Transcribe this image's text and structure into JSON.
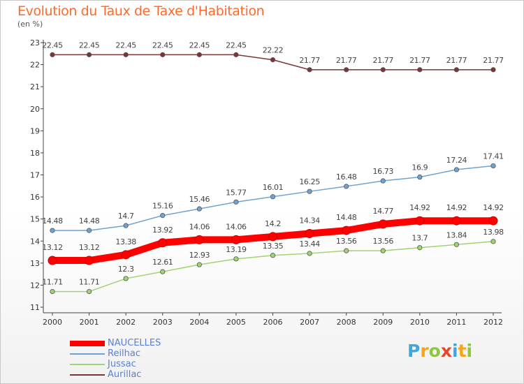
{
  "title": "Evolution du Taux de Taxe d'Habitation",
  "subtitle": "(en %)",
  "brand": {
    "letters": [
      "P",
      "r",
      "o",
      "x",
      "i",
      "t",
      "i"
    ],
    "colors": [
      "#39a9e0",
      "#f4a51c",
      "#8dc63f",
      "#e8452c",
      "#39a9e0",
      "#f4a51c",
      "#8dc63f"
    ]
  },
  "chart_data": {
    "type": "line",
    "title": "Evolution du Taux de Taxe d'Habitation",
    "subtitle": "(en %)",
    "x": [
      "2000",
      "2001",
      "2002",
      "2003",
      "2004",
      "2005",
      "2006",
      "2007",
      "2008",
      "2009",
      "2010",
      "2011",
      "2012"
    ],
    "ylim": [
      11,
      23
    ],
    "yticks": [
      "11",
      "12",
      "13",
      "14",
      "15",
      "16",
      "17",
      "18",
      "19",
      "20",
      "21",
      "22",
      "23"
    ],
    "grid": false,
    "legend_position": "bottom-left",
    "series": [
      {
        "name": "NAUCELLES",
        "color": "#ff0000",
        "weight": "bold",
        "values": [
          13.12,
          13.12,
          13.38,
          13.92,
          14.06,
          14.06,
          14.2,
          14.34,
          14.48,
          14.77,
          14.92,
          14.92,
          14.92
        ],
        "labels": [
          "13.12",
          "13.12",
          "13.38",
          "13.92",
          "14.06",
          "14.06",
          "14.2",
          "14.34",
          "14.48",
          "14.77",
          "14.92",
          "14.92",
          "14.92"
        ]
      },
      {
        "name": "Reilhac",
        "color": "#6fa3d1",
        "weight": "normal",
        "values": [
          14.48,
          14.48,
          14.7,
          15.16,
          15.46,
          15.77,
          16.01,
          16.25,
          16.48,
          16.73,
          16.9,
          17.24,
          17.41
        ],
        "labels": [
          "14.48",
          "14.48",
          "14.7",
          "15.16",
          "15.46",
          "15.77",
          "16.01",
          "16.25",
          "16.48",
          "16.73",
          "16.9",
          "17.24",
          "17.41"
        ]
      },
      {
        "name": "Jussac",
        "color": "#9fd472",
        "weight": "normal",
        "values": [
          11.71,
          11.71,
          12.3,
          12.61,
          12.93,
          13.19,
          13.35,
          13.44,
          13.56,
          13.56,
          13.7,
          13.84,
          13.98
        ],
        "labels": [
          "11.71",
          "11.71",
          "12.3",
          "12.61",
          "12.93",
          "13.19",
          "13.35",
          "13.44",
          "13.56",
          "13.56",
          "13.7",
          "13.84",
          "13.98"
        ]
      },
      {
        "name": "Aurillac",
        "color": "#7a3535",
        "weight": "normal",
        "values": [
          22.45,
          22.45,
          22.45,
          22.45,
          22.45,
          22.45,
          22.22,
          21.77,
          21.77,
          21.77,
          21.77,
          21.77,
          21.77
        ],
        "labels": [
          "22.45",
          "22.45",
          "22.45",
          "22.45",
          "22.45",
          "22.45",
          "22.22",
          "21.77",
          "21.77",
          "21.77",
          "21.77",
          "21.77",
          "21.77"
        ]
      }
    ]
  }
}
